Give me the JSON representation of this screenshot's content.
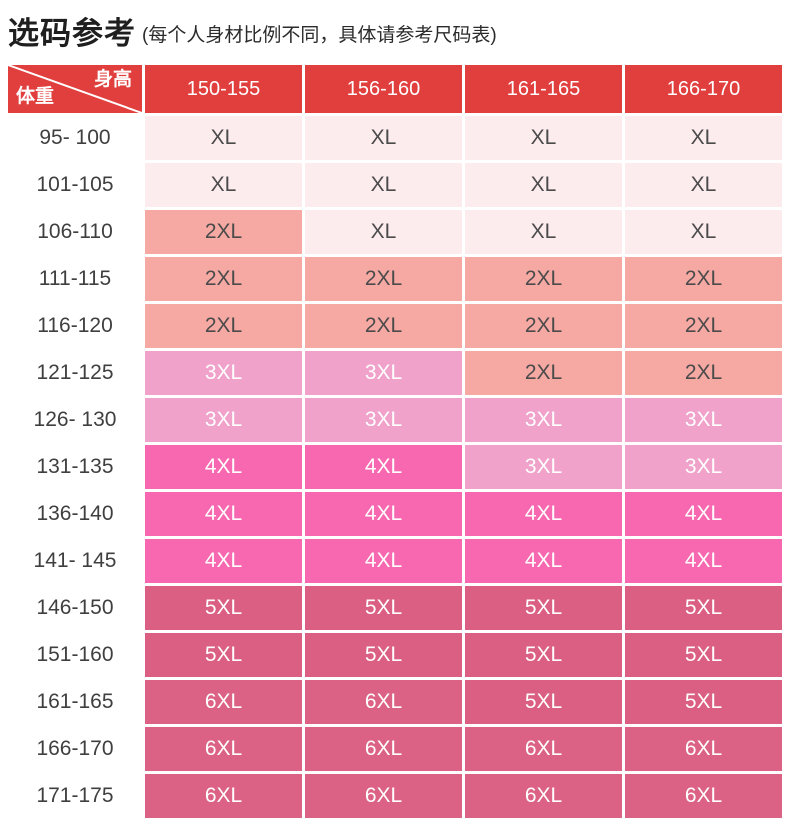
{
  "header": {
    "title": "选码参考",
    "subtitle": "(每个人身材比例不同，具体请参考尺码表)"
  },
  "chart_data": {
    "type": "table",
    "title": "选码参考",
    "corner": {
      "top_right_label": "身高",
      "bottom_left_label": "体重"
    },
    "columns": [
      "150-155",
      "156-160",
      "161-165",
      "166-170"
    ],
    "rows": [
      {
        "weight": "95- 100",
        "sizes": [
          "XL",
          "XL",
          "XL",
          "XL"
        ]
      },
      {
        "weight": "101-105",
        "sizes": [
          "XL",
          "XL",
          "XL",
          "XL"
        ]
      },
      {
        "weight": "106-110",
        "sizes": [
          "2XL",
          "XL",
          "XL",
          "XL"
        ]
      },
      {
        "weight": "111-115",
        "sizes": [
          "2XL",
          "2XL",
          "2XL",
          "2XL"
        ]
      },
      {
        "weight": "116-120",
        "sizes": [
          "2XL",
          "2XL",
          "2XL",
          "2XL"
        ]
      },
      {
        "weight": "121-125",
        "sizes": [
          "3XL",
          "3XL",
          "2XL",
          "2XL"
        ]
      },
      {
        "weight": "126- 130",
        "sizes": [
          "3XL",
          "3XL",
          "3XL",
          "3XL"
        ]
      },
      {
        "weight": "131-135",
        "sizes": [
          "4XL",
          "4XL",
          "3XL",
          "3XL"
        ]
      },
      {
        "weight": "136-140",
        "sizes": [
          "4XL",
          "4XL",
          "4XL",
          "4XL"
        ]
      },
      {
        "weight": "141- 145",
        "sizes": [
          "4XL",
          "4XL",
          "4XL",
          "4XL"
        ]
      },
      {
        "weight": "146-150",
        "sizes": [
          "5XL",
          "5XL",
          "5XL",
          "5XL"
        ]
      },
      {
        "weight": "151-160",
        "sizes": [
          "5XL",
          "5XL",
          "5XL",
          "5XL"
        ]
      },
      {
        "weight": "161-165",
        "sizes": [
          "6XL",
          "6XL",
          "5XL",
          "5XL"
        ]
      },
      {
        "weight": "166-170",
        "sizes": [
          "6XL",
          "6XL",
          "6XL",
          "6XL"
        ]
      },
      {
        "weight": "171-175",
        "sizes": [
          "6XL",
          "6XL",
          "6XL",
          "6XL"
        ]
      }
    ]
  },
  "colors": {
    "header_bg": "#e13e3e",
    "header_text": "#ffffff",
    "row_label_text": "#3f3f3f",
    "size_styles": {
      "XL": {
        "bg": "#fdecee",
        "text": "#4b4b4b"
      },
      "2XL": {
        "bg": "#f6a8a3",
        "text": "#4b4b4b"
      },
      "3XL": {
        "bg": "#f0a2cb",
        "text": "#ffffff"
      },
      "4XL": {
        "bg": "#f768b1",
        "text": "#ffffff"
      },
      "5XL": {
        "bg": "#da5f82",
        "text": "#ffffff"
      },
      "6XL": {
        "bg": "#dc6285",
        "text": "#ffffff"
      }
    }
  }
}
